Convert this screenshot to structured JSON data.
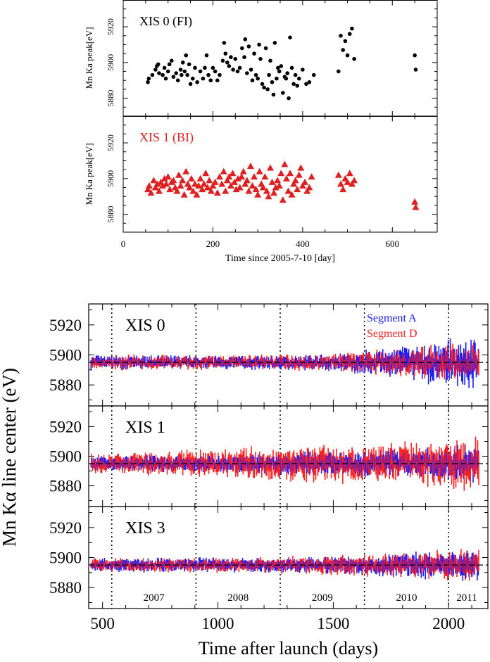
{
  "chart_data": [
    {
      "type": "scatter",
      "title": "",
      "xlabel": "Time since 2005-7-10 [day]",
      "xlim": [
        0,
        700
      ],
      "xticks": [
        "0",
        "200",
        "400",
        "600"
      ],
      "grid": false,
      "panels": [
        {
          "label": "XIS 0 (FI)",
          "ylabel": "Mn Ka peak[eV]",
          "ylim": [
            5870,
            5935
          ],
          "yticks": [
            "5880",
            "5900",
            "5920"
          ],
          "color": "#000000",
          "marker": "circle",
          "series": [
            {
              "name": "",
              "x": [
                55,
                57,
                65,
                72,
                75,
                78,
                80,
                88,
                92,
                95,
                100,
                103,
                108,
                112,
                118,
                122,
                128,
                130,
                133,
                137,
                140,
                143,
                147,
                150,
                155,
                160,
                165,
                172,
                178,
                182,
                186,
                190,
                195,
                200,
                205,
                210,
                215,
                222,
                225,
                228,
                232,
                236,
                240,
                245,
                250,
                255,
                260,
                265,
                270,
                272,
                276,
                280,
                285,
                288,
                292,
                296,
                300,
                303,
                306,
                310,
                314,
                318,
                322,
                325,
                328,
                332,
                335,
                338,
                342,
                345,
                348,
                352,
                356,
                360,
                363,
                366,
                369,
                372,
                376,
                380,
                384,
                388,
                392,
                400,
                408,
                415,
                425,
                480,
                485,
                490,
                495,
                500,
                505,
                510,
                515,
                650,
                652
              ],
              "y": [
                5889,
                5891,
                5893,
                5896,
                5898,
                5899,
                5894,
                5893,
                5897,
                5891,
                5895,
                5899,
                5901,
                5892,
                5894,
                5890,
                5896,
                5893,
                5900,
                5895,
                5904,
                5893,
                5899,
                5888,
                5891,
                5897,
                5889,
                5895,
                5891,
                5897,
                5904,
                5893,
                5890,
                5897,
                5895,
                5890,
                5893,
                5901,
                5911,
                5905,
                5900,
                5898,
                5903,
                5896,
                5902,
                5895,
                5897,
                5908,
                5903,
                5913,
                5894,
                5909,
                5896,
                5890,
                5905,
                5893,
                5891,
                5910,
                5902,
                5888,
                5886,
                5908,
                5885,
                5893,
                5901,
                5889,
                5882,
                5911,
                5891,
                5897,
                5895,
                5898,
                5883,
                5892,
                5891,
                5894,
                5880,
                5914,
                5897,
                5888,
                5893,
                5887,
                5891,
                5896,
                5888,
                5889,
                5893,
                5895,
                5915,
                5907,
                5912,
                5904,
                5916,
                5919,
                5902,
                5904,
                5896
              ]
            }
          ]
        },
        {
          "label": "XIS 1 (BI)",
          "ylabel": "Mn Ka peak[eV]",
          "ylim": [
            5870,
            5935
          ],
          "yticks": [
            "5880",
            "5900",
            "5920"
          ],
          "color": "#e02020",
          "marker": "triangle",
          "series": [
            {
              "name": "",
              "x": [
                55,
                58,
                62,
                68,
                72,
                76,
                80,
                84,
                88,
                92,
                96,
                100,
                104,
                108,
                112,
                116,
                120,
                124,
                128,
                132,
                136,
                140,
                144,
                148,
                152,
                156,
                160,
                164,
                168,
                172,
                176,
                180,
                184,
                188,
                192,
                196,
                200,
                205,
                210,
                215,
                220,
                224,
                228,
                232,
                236,
                240,
                244,
                248,
                252,
                256,
                260,
                264,
                268,
                272,
                276,
                280,
                284,
                288,
                292,
                296,
                300,
                304,
                308,
                312,
                316,
                320,
                324,
                328,
                332,
                336,
                340,
                344,
                348,
                352,
                356,
                360,
                364,
                368,
                372,
                376,
                380,
                384,
                388,
                392,
                396,
                400,
                405,
                410,
                415,
                420,
                480,
                485,
                490,
                495,
                500,
                505,
                510,
                515,
                650,
                652
              ],
              "y": [
                5894,
                5896,
                5892,
                5899,
                5895,
                5897,
                5893,
                5898,
                5896,
                5900,
                5897,
                5901,
                5894,
                5898,
                5899,
                5895,
                5893,
                5902,
                5896,
                5899,
                5891,
                5904,
                5897,
                5895,
                5900,
                5893,
                5897,
                5891,
                5896,
                5900,
                5894,
                5897,
                5903,
                5895,
                5899,
                5893,
                5896,
                5898,
                5892,
                5901,
                5897,
                5904,
                5893,
                5899,
                5901,
                5896,
                5903,
                5898,
                5894,
                5900,
                5895,
                5901,
                5904,
                5897,
                5899,
                5893,
                5907,
                5896,
                5901,
                5894,
                5891,
                5904,
                5897,
                5895,
                5901,
                5893,
                5890,
                5906,
                5898,
                5892,
                5895,
                5899,
                5896,
                5903,
                5888,
                5908,
                5900,
                5893,
                5903,
                5891,
                5897,
                5899,
                5894,
                5902,
                5906,
                5896,
                5898,
                5893,
                5895,
                5901,
                5902,
                5897,
                5894,
                5900,
                5898,
                5903,
                5897,
                5899,
                5887,
                5884
              ]
            }
          ]
        }
      ]
    },
    {
      "type": "line",
      "title": "",
      "xlabel": "Time after launch (days)",
      "ylabel": "Mn Kα line center (eV)",
      "xlim": [
        440,
        2170
      ],
      "xticks": [
        "500",
        "1000",
        "1500",
        "2000"
      ],
      "ylim": [
        5866,
        5934
      ],
      "yticks": [
        "5880",
        "5900",
        "5920"
      ],
      "reference_line": 5895,
      "year_boundaries": [
        540,
        905,
        1270,
        1635,
        2000
      ],
      "year_labels": [
        "2007",
        "2008",
        "2009",
        "2010",
        "2011"
      ],
      "legend": [
        "Segment A",
        "Segment D"
      ],
      "legend_placement": "top-right",
      "series_colors": {
        "Segment A": "#1a1aff",
        "Segment D": "#ff2020"
      },
      "panels": [
        {
          "label": "XIS 0",
          "amp_a": [
            3,
            3,
            3,
            3.5,
            7,
            12
          ],
          "amp_d": [
            3,
            3,
            3,
            3.5,
            6,
            8
          ]
        },
        {
          "label": "XIS 1",
          "amp_a": [
            3,
            3.5,
            4,
            5,
            6,
            8
          ],
          "amp_d": [
            4,
            5,
            7,
            8,
            9,
            12
          ]
        },
        {
          "label": "XIS 3",
          "amp_a": [
            3,
            3,
            3,
            3.5,
            5,
            7
          ],
          "amp_d": [
            3,
            3,
            3,
            4,
            5,
            7
          ]
        }
      ]
    }
  ]
}
